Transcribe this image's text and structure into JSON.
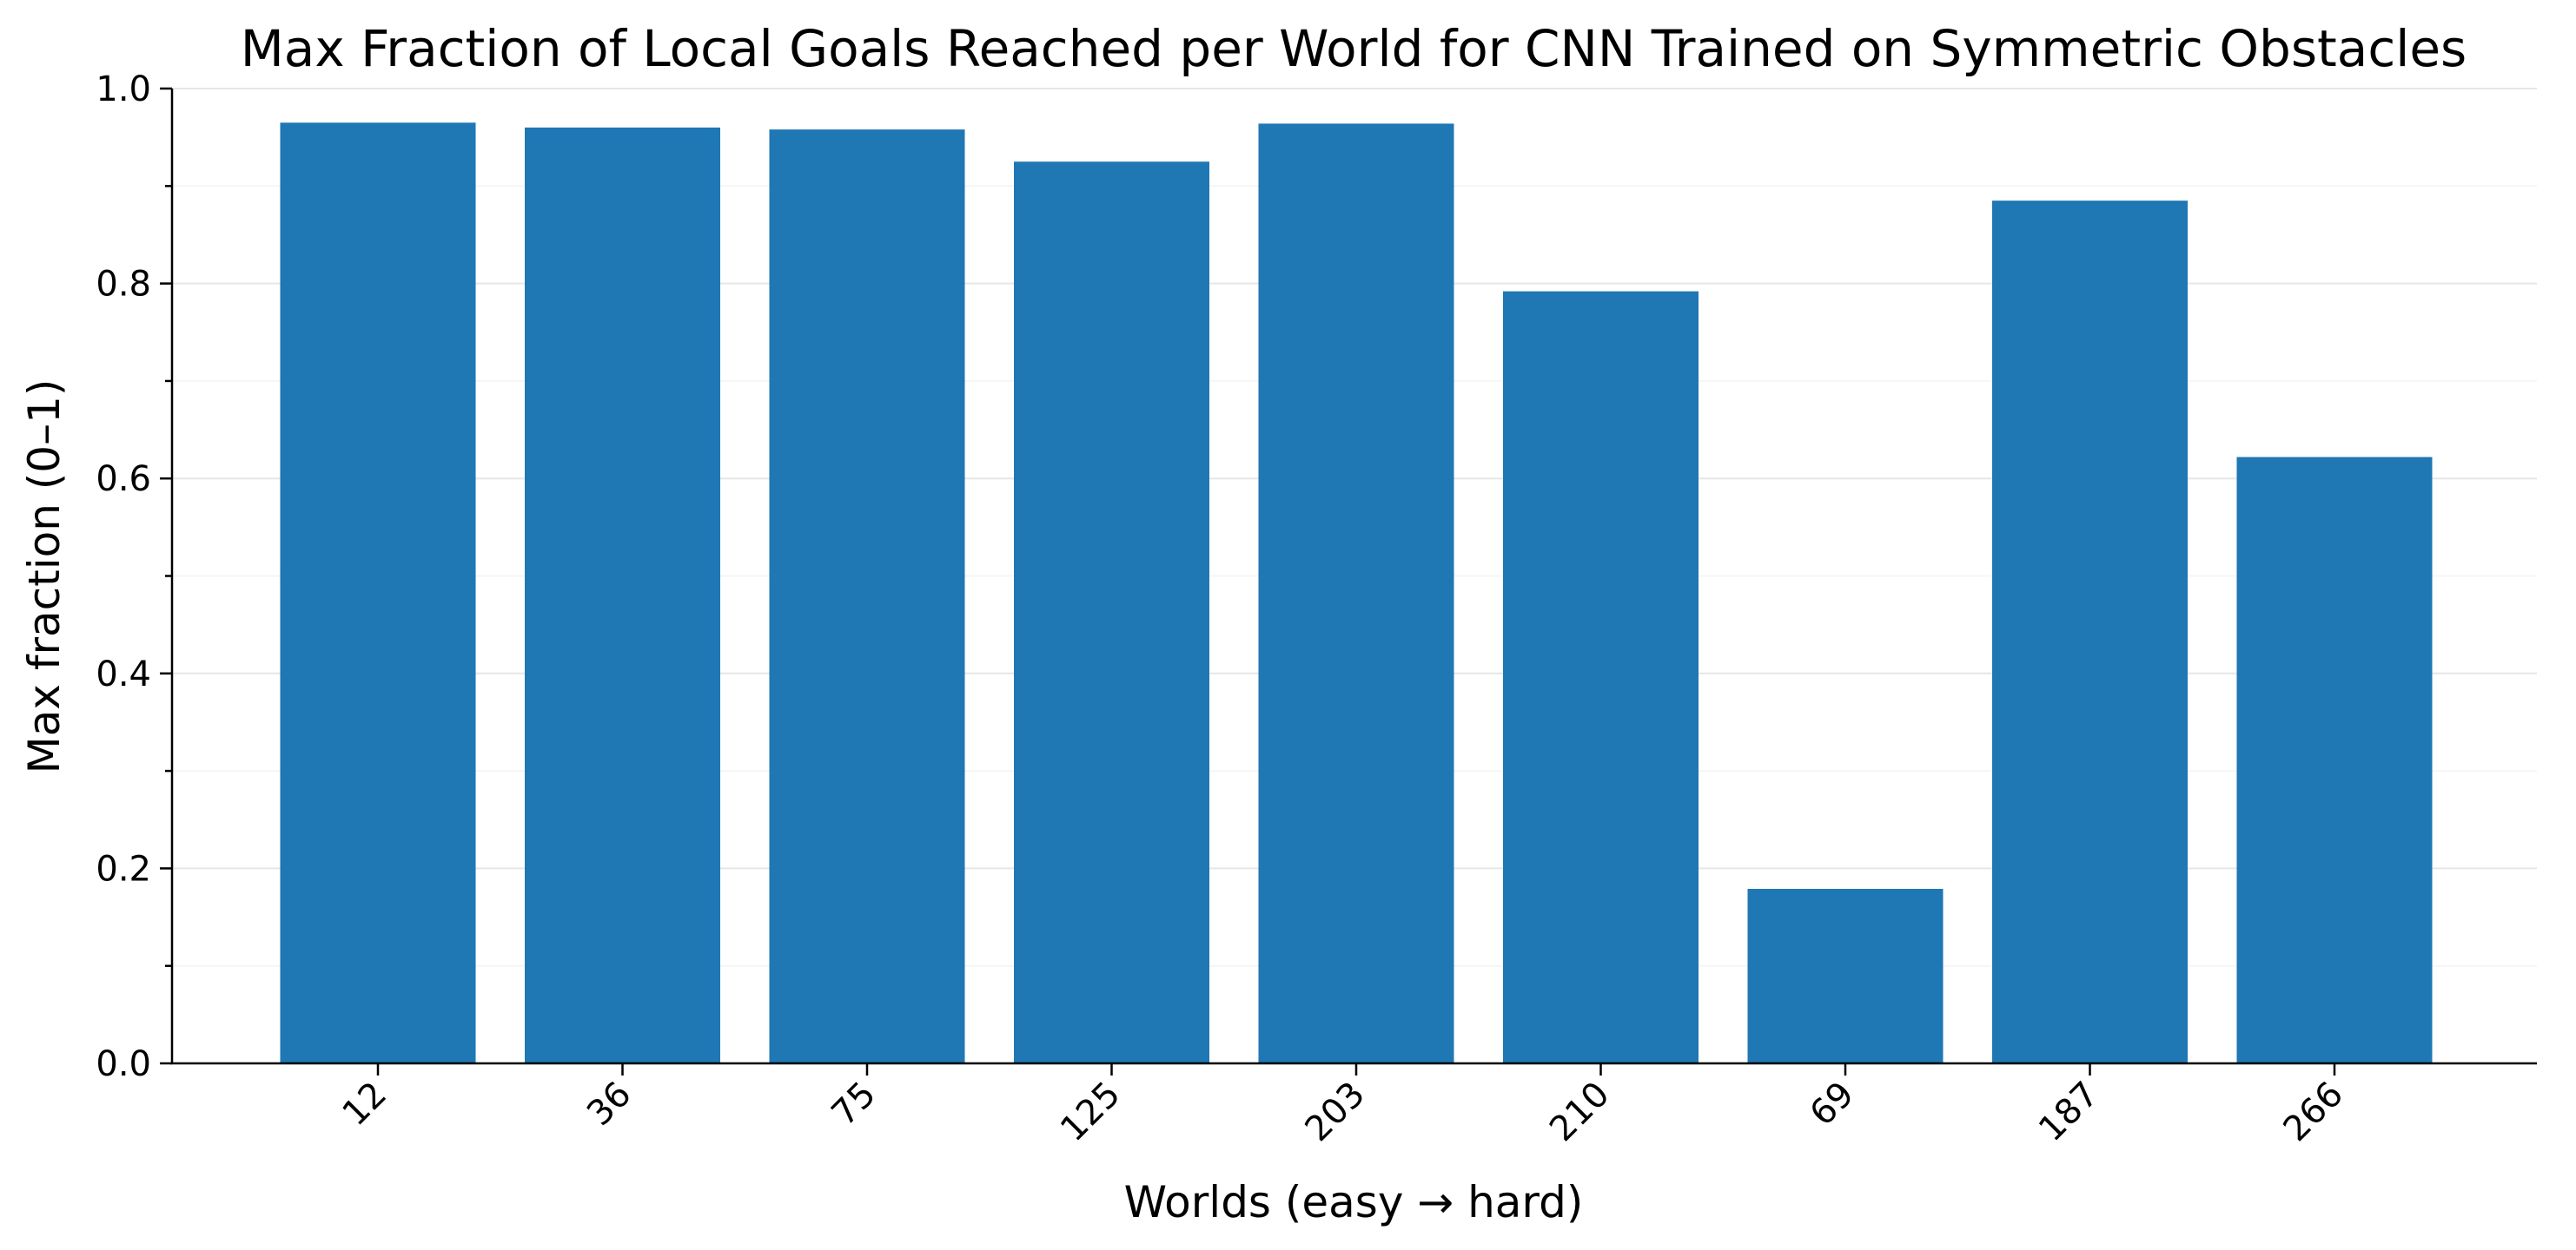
{
  "chart_data": {
    "type": "bar",
    "title": "Max Fraction of Local Goals Reached per World for CNN Trained on Symmetric Obstacles",
    "xlabel": "Worlds (easy → hard)",
    "ylabel": "Max fraction (0–1)",
    "categories": [
      "12",
      "36",
      "75",
      "125",
      "203",
      "210",
      "69",
      "187",
      "266"
    ],
    "values": [
      0.965,
      0.96,
      0.958,
      0.925,
      0.964,
      0.792,
      0.179,
      0.885,
      0.622
    ],
    "ylim": [
      0,
      1.0
    ],
    "yticks": [
      "0.0",
      "0.2",
      "0.4",
      "0.6",
      "0.8",
      "1.0"
    ],
    "grid": true,
    "bar_color": "#1f77b4"
  }
}
